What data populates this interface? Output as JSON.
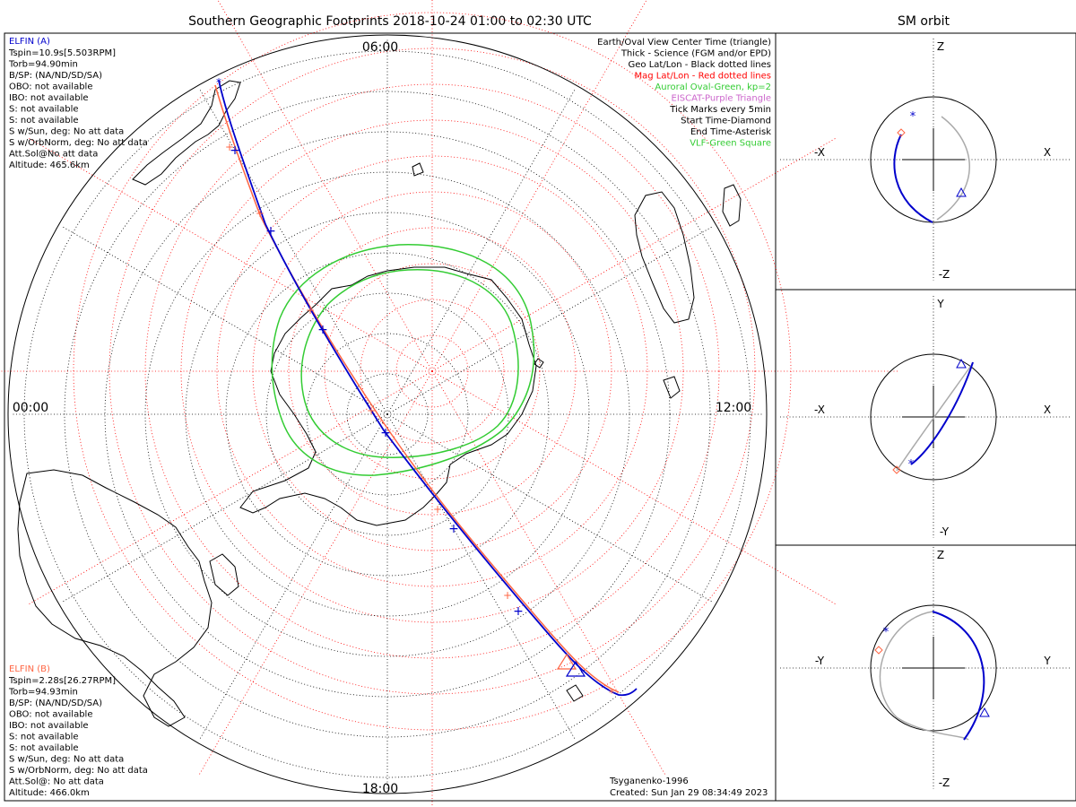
{
  "title": "Southern Geographic Footprints 2018-10-24 01:00 to 02:30 UTC",
  "sm_title": "SM orbit",
  "clock_labels": {
    "top": "06:00",
    "left": "00:00",
    "right": "12:00",
    "bottom": "18:00"
  },
  "elfin_a": {
    "name": "ELFIN (A)",
    "lines": [
      "Tspin=10.9s[5.503RPM]",
      "Torb=94.90min",
      "B/SP: (NA/ND/SD/SA)",
      "OBO: not available",
      "IBO: not available",
      "S: not available",
      "S: not available",
      "S w/Sun, deg: No att data",
      "S w/OrbNorm, deg: No att data",
      "Att.Sol@No att data",
      "Altitude: 465.6km"
    ]
  },
  "elfin_b": {
    "name": "ELFIN (B)",
    "lines": [
      "Tspin=2.28s[26.27RPM]",
      "Torb=94.93min",
      "B/SP: (NA/ND/SD/SA)",
      "OBO: not available",
      "IBO: not available",
      "S: not available",
      "S: not available",
      "S w/Sun, deg: No att data",
      "S w/OrbNorm, deg: No att data",
      "Att.Sol@: No att data",
      "Altitude: 466.0km"
    ]
  },
  "legend": [
    {
      "text": "Earth/Oval View Center Time (triangle)",
      "color": "#000000"
    },
    {
      "text": "Thick - Science (FGM and/or EPD)",
      "color": "#000000"
    },
    {
      "text": "Geo Lat/Lon - Black dotted lines",
      "color": "#000000"
    },
    {
      "text": "Mag Lat/Lon - Red dotted lines",
      "color": "#ff0000"
    },
    {
      "text": "Auroral Oval-Green, kp=2",
      "color": "#33cc33"
    },
    {
      "text": "EISCAT-Purple Triangle",
      "color": "#cc66cc"
    },
    {
      "text": "Tick Marks every 5min",
      "color": "#000000"
    },
    {
      "text": "Start Time-Diamond",
      "color": "#000000"
    },
    {
      "text": "End Time-Asterisk",
      "color": "#000000"
    },
    {
      "text": "VLF-Green Square",
      "color": "#33cc33"
    }
  ],
  "footer": {
    "model": "Tsyganenko-1996",
    "created": "Created: Sun Jan 29 08:34:49 2023"
  },
  "sm_panels": [
    {
      "top": "Z",
      "bottom": "-Z",
      "left": "-X",
      "right": "X"
    },
    {
      "top": "Y",
      "bottom": "-Y",
      "left": "-X",
      "right": "X"
    },
    {
      "top": "Z",
      "bottom": "-Z",
      "left": "-Y",
      "right": "Y"
    }
  ],
  "colors": {
    "elfin_a": "#0000cc",
    "elfin_b": "#ff6644",
    "mag_grid": "#ff0000",
    "geo_grid": "#000000",
    "oval": "#33cc33",
    "orbit_shadow": "#aaaaaa"
  }
}
